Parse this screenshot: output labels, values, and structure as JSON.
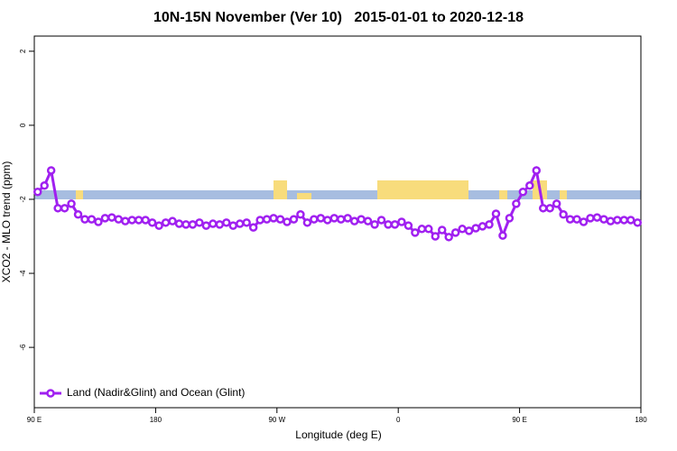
{
  "chart_data": {
    "type": "line",
    "title": "10N-15N November (Ver 10)   2015-01-01 to 2020-12-18",
    "xlabel": "Longitude (deg E)",
    "ylabel": "XCO2 - MLO trend (ppm)",
    "xlim": [
      90,
      540
    ],
    "xticks": [
      {
        "value": 90,
        "label": "90 E"
      },
      180,
      {
        "value": 270,
        "label": "90 W"
      },
      {
        "value": 360,
        "label": "0"
      },
      {
        "value": 450,
        "label": "90 E"
      },
      {
        "value": 540,
        "label": "180"
      }
    ],
    "ylim": [
      -7.63,
      2.41
    ],
    "yticks": [
      2,
      0,
      -2,
      -4,
      -6
    ],
    "legend": "bottom-left",
    "x": [
      92.5,
      97.5,
      102.5,
      107.5,
      112.5,
      117.5,
      122.5,
      127.5,
      132.5,
      137.5,
      142.5,
      147.5,
      152.5,
      157.5,
      162.5,
      167.5,
      172.5,
      177.5,
      182.5,
      187.5,
      192.5,
      197.5,
      202.5,
      207.5,
      212.5,
      217.5,
      222.5,
      227.5,
      232.5,
      237.5,
      242.5,
      247.5,
      252.5,
      257.5,
      262.5,
      267.5,
      272.5,
      277.5,
      282.5,
      287.5,
      292.5,
      297.5,
      302.5,
      307.5,
      312.5,
      317.5,
      322.5,
      327.5,
      332.5,
      337.5,
      342.5,
      347.5,
      352.5,
      357.5,
      362.5,
      367.5,
      372.5,
      377.5,
      382.5,
      387.5,
      392.5,
      397.5,
      402.5,
      407.5,
      412.5,
      417.5,
      422.5,
      427.5,
      432.5,
      437.5,
      442.5,
      447.5,
      452.5,
      457.5,
      462.5,
      467.5,
      472.5,
      477.5,
      482.5,
      487.5,
      492.5,
      497.5,
      502.5,
      507.5,
      512.5,
      517.5,
      522.5,
      527.5,
      532.5,
      537.5
    ],
    "series": [
      {
        "name": "Land (Nadir&Glint) and Ocean (Glint)",
        "color": "#a020f0",
        "values": [
          -1.8,
          -1.63,
          -1.22,
          -2.24,
          -2.24,
          -2.12,
          -2.41,
          -2.54,
          -2.54,
          -2.61,
          -2.51,
          -2.49,
          -2.54,
          -2.59,
          -2.56,
          -2.56,
          -2.56,
          -2.63,
          -2.71,
          -2.63,
          -2.59,
          -2.66,
          -2.68,
          -2.68,
          -2.63,
          -2.71,
          -2.66,
          -2.68,
          -2.63,
          -2.71,
          -2.66,
          -2.63,
          -2.76,
          -2.56,
          -2.54,
          -2.51,
          -2.54,
          -2.61,
          -2.54,
          -2.41,
          -2.63,
          -2.54,
          -2.51,
          -2.56,
          -2.51,
          -2.54,
          -2.51,
          -2.59,
          -2.54,
          -2.59,
          -2.68,
          -2.56,
          -2.68,
          -2.68,
          -2.61,
          -2.71,
          -2.9,
          -2.8,
          -2.8,
          -3.0,
          -2.83,
          -3.02,
          -2.9,
          -2.8,
          -2.85,
          -2.78,
          -2.73,
          -2.68,
          -2.39,
          -2.98,
          -2.51,
          -2.12,
          -1.8,
          -1.63,
          -1.22,
          -2.24,
          -2.24,
          -2.12,
          -2.41,
          -2.54,
          -2.54,
          -2.61,
          -2.51,
          -2.49,
          -2.54,
          -2.59,
          -2.56,
          -2.56,
          -2.56,
          -2.63
        ]
      }
    ]
  }
}
